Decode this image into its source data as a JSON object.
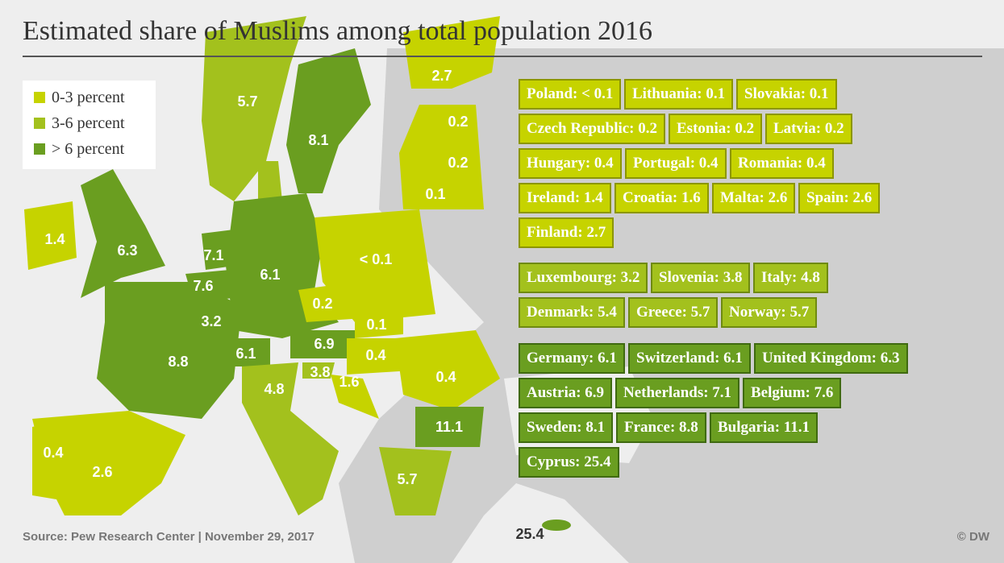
{
  "title": "Estimated share of Muslims among total population 2016",
  "legend": [
    {
      "label": "0-3 percent",
      "color": "#c6d300"
    },
    {
      "label": "3-6 percent",
      "color": "#a3c11d"
    },
    {
      "label": "> 6 percent",
      "color": "#6a9e20"
    }
  ],
  "map_labels": [
    "2.7",
    "5.7",
    "0.2",
    "8.1",
    "0.2",
    "0.1",
    "1.4",
    "6.3",
    "7.1",
    "6.1",
    "< 0.1",
    "7.6",
    "0.2",
    "3.2",
    "0.1",
    "6.9",
    "6.1",
    "0.4",
    "8.8",
    "0.4",
    "3.8",
    "1.6",
    "4.8",
    "11.1",
    "0.4",
    "2.6",
    "5.7",
    "25.4"
  ],
  "groups": [
    {
      "color": "#c6d300",
      "border": "#8c9600",
      "rows": [
        [
          "Poland: < 0.1",
          "Lithuania: 0.1",
          "Slovakia: 0.1"
        ],
        [
          "Czech Republic: 0.2",
          "Estonia: 0.2",
          "Latvia: 0.2"
        ],
        [
          "Hungary: 0.4",
          "Portugal: 0.4",
          "Romania: 0.4"
        ],
        [
          "Ireland: 1.4",
          "Croatia: 1.6",
          "Malta: 2.6",
          "Spain: 2.6"
        ],
        [
          "Finland: 2.7"
        ]
      ]
    },
    {
      "color": "#a3c11d",
      "border": "#6f8a10",
      "rows": [
        [
          "Luxembourg: 3.2",
          "Slovenia: 3.8",
          "Italy: 4.8"
        ],
        [
          "Denmark: 5.4",
          "Greece: 5.7",
          "Norway: 5.7"
        ]
      ]
    },
    {
      "color": "#6a9e20",
      "border": "#3f6a10",
      "rows": [
        [
          "Germany: 6.1",
          "Switzerland: 6.1",
          "United Kingdom: 6.3"
        ],
        [
          "Austria: 6.9",
          "Netherlands: 7.1",
          "Belgium: 7.6"
        ],
        [
          "Sweden: 8.1",
          "France: 8.8",
          "Bulgaria: 11.1"
        ],
        [
          "Cyprus: 25.4"
        ]
      ]
    }
  ],
  "source": "Source: Pew Research Center | November 29, 2017",
  "credit": "© DW"
}
